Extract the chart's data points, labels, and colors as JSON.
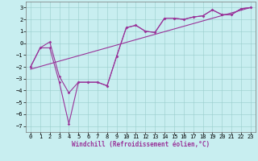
{
  "xlabel": "Windchill (Refroidissement éolien,°C)",
  "bg_color": "#c8eef0",
  "line_color": "#993399",
  "grid_color": "#99cccc",
  "xlim": [
    -0.5,
    23.5
  ],
  "ylim": [
    -7.5,
    3.5
  ],
  "ytick_min": -7,
  "ytick_max": 3,
  "xtick_min": 0,
  "xtick_max": 23,
  "line1_x": [
    0,
    1,
    2,
    3,
    4,
    5,
    6,
    7,
    8,
    9,
    10,
    11,
    12,
    13,
    14,
    15,
    16,
    17,
    18,
    19,
    20,
    21,
    22,
    23
  ],
  "line1_y": [
    -2.0,
    -0.4,
    0.1,
    -2.8,
    -4.2,
    -3.3,
    -3.3,
    -3.3,
    -3.6,
    -1.1,
    1.3,
    1.5,
    1.0,
    0.9,
    2.1,
    2.1,
    2.0,
    2.2,
    2.3,
    2.8,
    2.4,
    2.4,
    2.9,
    3.0
  ],
  "line2_x": [
    0,
    1,
    2,
    3,
    4,
    5,
    6,
    7,
    8,
    9,
    10,
    11,
    12,
    13,
    14,
    15,
    16,
    17,
    18,
    19,
    20,
    21,
    22,
    23
  ],
  "line2_y": [
    -2.0,
    -0.4,
    -0.4,
    -3.3,
    -6.8,
    -3.3,
    -3.3,
    -3.3,
    -3.6,
    -1.1,
    1.3,
    1.5,
    1.0,
    0.9,
    2.1,
    2.1,
    2.0,
    2.2,
    2.3,
    2.8,
    2.4,
    2.4,
    2.9,
    3.0
  ],
  "line3_x": [
    0,
    23
  ],
  "line3_y": [
    -2.2,
    3.0
  ],
  "marker_x": [
    0,
    1,
    2,
    3,
    4,
    5,
    6,
    7,
    8,
    9,
    10,
    11,
    12,
    13,
    14,
    15,
    16,
    17,
    18,
    19,
    20,
    21,
    22,
    23
  ],
  "tick_fontsize": 5,
  "xlabel_fontsize": 5.5,
  "spine_color": "#777777"
}
